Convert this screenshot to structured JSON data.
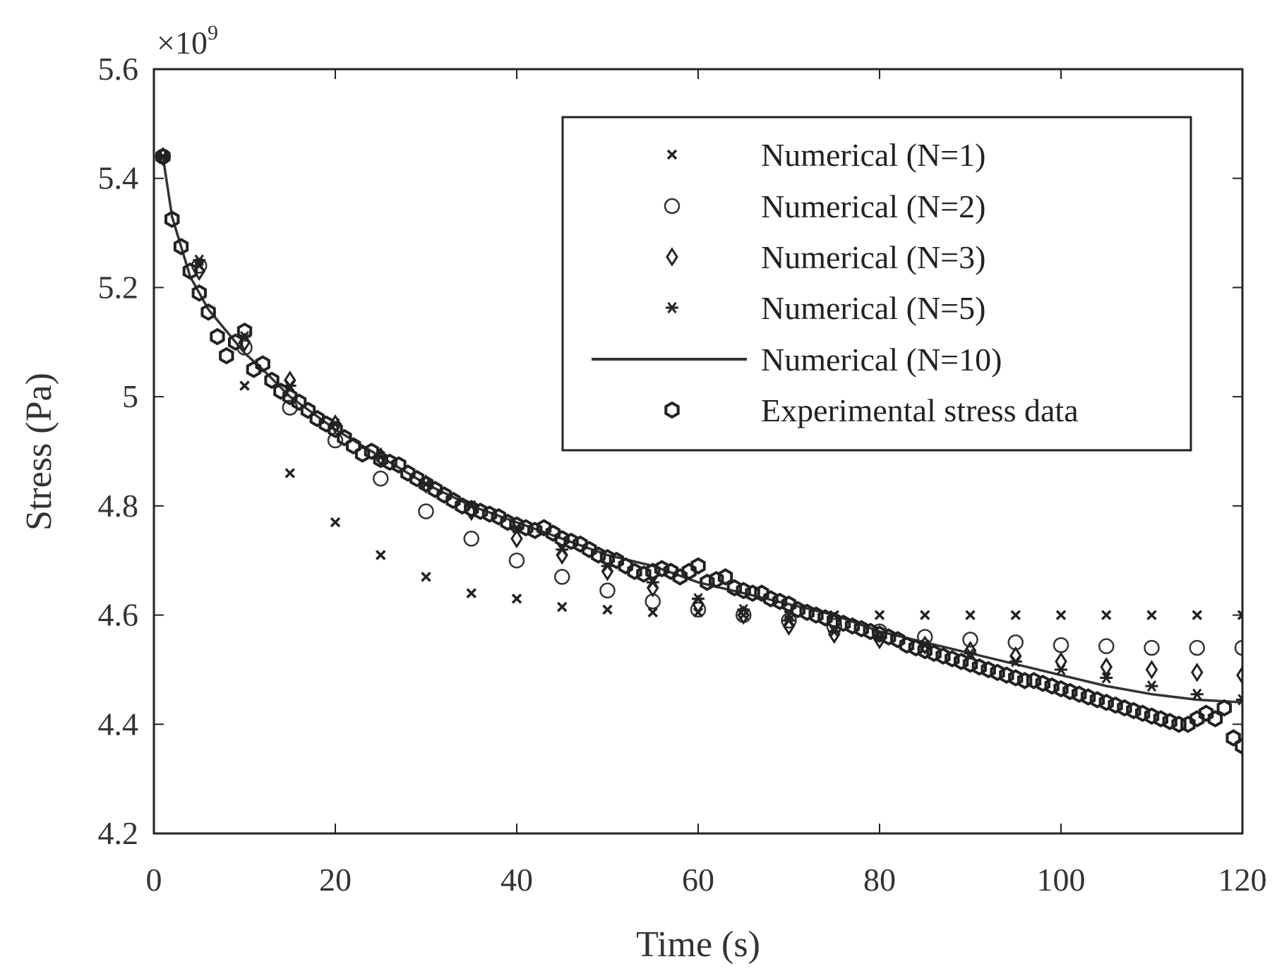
{
  "chart_data": {
    "type": "scatter",
    "title": "",
    "xlabel": "Time (s)",
    "ylabel": "Stress (Pa)",
    "y_multiplier_label": "×10",
    "y_multiplier_exp": "9",
    "xlim": [
      0,
      120
    ],
    "ylim": [
      4.2,
      5.6
    ],
    "xticks": [
      0,
      20,
      40,
      60,
      80,
      100,
      120
    ],
    "xtick_labels": [
      "0",
      "20",
      "40",
      "60",
      "80",
      "100",
      "120"
    ],
    "yticks": [
      4.2,
      4.4,
      4.6,
      4.8,
      5.0,
      5.2,
      5.4,
      5.6
    ],
    "ytick_labels": [
      "4.2",
      "4.4",
      "4.6",
      "4.8",
      "5",
      "5.2",
      "5.4",
      "5.6"
    ],
    "legend_position": "top-right",
    "series": [
      {
        "name": "Numerical (N=1)",
        "marker": "x",
        "x": [
          1,
          5,
          10,
          15,
          20,
          25,
          30,
          35,
          40,
          45,
          50,
          55,
          60,
          65,
          70,
          75,
          80,
          85,
          90,
          95,
          100,
          105,
          110,
          115,
          120
        ],
        "y": [
          5.44,
          5.24,
          5.02,
          4.86,
          4.77,
          4.71,
          4.67,
          4.64,
          4.63,
          4.615,
          4.61,
          4.605,
          4.605,
          4.6,
          4.6,
          4.6,
          4.6,
          4.6,
          4.6,
          4.6,
          4.6,
          4.6,
          4.6,
          4.6,
          4.6
        ]
      },
      {
        "name": "Numerical (N=2)",
        "marker": "circle",
        "x": [
          1,
          5,
          10,
          15,
          20,
          25,
          30,
          35,
          40,
          45,
          50,
          55,
          60,
          65,
          70,
          75,
          80,
          85,
          90,
          95,
          100,
          105,
          110,
          115,
          120
        ],
        "y": [
          5.44,
          5.24,
          5.09,
          4.98,
          4.92,
          4.85,
          4.79,
          4.74,
          4.7,
          4.67,
          4.645,
          4.625,
          4.61,
          4.6,
          4.59,
          4.58,
          4.57,
          4.56,
          4.555,
          4.55,
          4.545,
          4.543,
          4.54,
          4.54,
          4.54
        ]
      },
      {
        "name": "Numerical (N=3)",
        "marker": "diamond",
        "x": [
          1,
          5,
          10,
          15,
          20,
          25,
          30,
          35,
          40,
          45,
          50,
          55,
          60,
          65,
          70,
          75,
          80,
          85,
          90,
          95,
          100,
          105,
          110,
          115,
          120
        ],
        "y": [
          5.44,
          5.23,
          5.1,
          5.03,
          4.95,
          4.89,
          4.84,
          4.79,
          4.74,
          4.71,
          4.68,
          4.65,
          4.62,
          4.6,
          4.58,
          4.565,
          4.555,
          4.545,
          4.535,
          4.525,
          4.515,
          4.505,
          4.5,
          4.495,
          4.49
        ]
      },
      {
        "name": "Numerical (N=5)",
        "marker": "star",
        "x": [
          1,
          5,
          10,
          15,
          20,
          25,
          30,
          35,
          40,
          45,
          50,
          55,
          60,
          65,
          70,
          75,
          80,
          85,
          90,
          95,
          100,
          105,
          110,
          115,
          120
        ],
        "y": [
          5.44,
          5.25,
          5.11,
          5.02,
          4.95,
          4.89,
          4.84,
          4.8,
          4.76,
          4.72,
          4.69,
          4.66,
          4.63,
          4.61,
          4.59,
          4.57,
          4.56,
          4.545,
          4.53,
          4.515,
          4.5,
          4.485,
          4.47,
          4.455,
          4.445
        ]
      },
      {
        "name": "Numerical (N=10)",
        "marker": "line",
        "x": [
          1,
          2,
          4,
          6,
          8,
          10,
          12,
          15,
          20,
          25,
          30,
          35,
          40,
          45,
          50,
          55,
          60,
          65,
          70,
          75,
          80,
          85,
          90,
          95,
          100,
          105,
          110,
          115,
          120
        ],
        "y": [
          5.44,
          5.33,
          5.22,
          5.16,
          5.12,
          5.08,
          5.05,
          5.0,
          4.94,
          4.89,
          4.84,
          4.8,
          4.77,
          4.74,
          4.71,
          4.69,
          4.66,
          4.64,
          4.62,
          4.6,
          4.57,
          4.55,
          4.53,
          4.51,
          4.49,
          4.47,
          4.455,
          4.445,
          4.44
        ]
      },
      {
        "name": "Experimental stress data",
        "marker": "hexagon",
        "x": [
          1,
          2,
          3,
          4,
          5,
          6,
          7,
          8,
          9,
          10,
          11,
          12,
          13,
          14,
          15,
          16,
          17,
          18,
          19,
          20,
          21,
          22,
          23,
          24,
          25,
          26,
          27,
          28,
          29,
          30,
          31,
          32,
          33,
          34,
          35,
          36,
          37,
          38,
          39,
          40,
          41,
          42,
          43,
          44,
          45,
          46,
          47,
          48,
          49,
          50,
          51,
          52,
          53,
          54,
          55,
          56,
          57,
          58,
          59,
          60,
          61,
          62,
          63,
          64,
          65,
          66,
          67,
          68,
          69,
          70,
          71,
          72,
          73,
          74,
          75,
          76,
          77,
          78,
          79,
          80,
          81,
          82,
          83,
          84,
          85,
          86,
          87,
          88,
          89,
          90,
          91,
          92,
          93,
          94,
          95,
          96,
          97,
          98,
          99,
          100,
          101,
          102,
          103,
          104,
          105,
          106,
          107,
          108,
          109,
          110,
          111,
          112,
          113,
          114,
          115,
          116,
          117,
          118,
          119,
          120
        ],
        "y": [
          5.44,
          5.325,
          5.275,
          5.23,
          5.19,
          5.155,
          5.11,
          5.075,
          5.1,
          5.12,
          5.05,
          5.06,
          5.03,
          5.01,
          5.0,
          4.99,
          4.975,
          4.96,
          4.95,
          4.94,
          4.925,
          4.91,
          4.895,
          4.9,
          4.885,
          4.88,
          4.875,
          4.86,
          4.85,
          4.84,
          4.83,
          4.82,
          4.81,
          4.8,
          4.795,
          4.79,
          4.785,
          4.78,
          4.77,
          4.765,
          4.76,
          4.755,
          4.76,
          4.75,
          4.74,
          4.735,
          4.73,
          4.72,
          4.71,
          4.705,
          4.7,
          4.69,
          4.68,
          4.675,
          4.68,
          4.685,
          4.68,
          4.67,
          4.68,
          4.69,
          4.66,
          4.665,
          4.67,
          4.65,
          4.645,
          4.64,
          4.64,
          4.63,
          4.625,
          4.62,
          4.61,
          4.605,
          4.6,
          4.595,
          4.59,
          4.585,
          4.58,
          4.575,
          4.57,
          4.565,
          4.56,
          4.555,
          4.545,
          4.54,
          4.535,
          4.53,
          4.525,
          4.52,
          4.515,
          4.51,
          4.505,
          4.5,
          4.495,
          4.49,
          4.485,
          4.48,
          4.48,
          4.475,
          4.47,
          4.465,
          4.46,
          4.455,
          4.45,
          4.445,
          4.44,
          4.435,
          4.43,
          4.425,
          4.42,
          4.415,
          4.41,
          4.405,
          4.4,
          4.4,
          4.41,
          4.42,
          4.41,
          4.43,
          4.375,
          4.36
        ]
      }
    ]
  }
}
